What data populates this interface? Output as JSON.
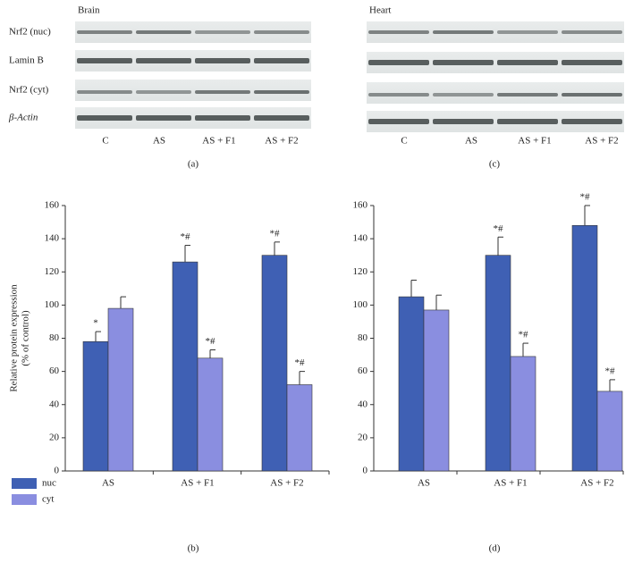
{
  "blots": [
    {
      "title": "Brain",
      "rows": [
        "Nrf2 (nuc)",
        "Lamin B",
        "Nrf2 (cyt)",
        "β-Actin"
      ],
      "columns": [
        "C",
        "AS",
        "AS + F1",
        "AS + F2"
      ],
      "label": "(a)"
    },
    {
      "title": "Heart",
      "columns": [
        "C",
        "AS",
        "AS + F1",
        "AS + F2"
      ],
      "label": "(c)"
    }
  ],
  "chart_data": [
    {
      "type": "bar",
      "label": "(b)",
      "y_label": [
        "Relative protein expression",
        "(% of control)"
      ],
      "categories": [
        "AS",
        "AS + F1",
        "AS + F2"
      ],
      "series": [
        {
          "name": "nuc",
          "color": "#3f60b4",
          "values": [
            78,
            126,
            130
          ],
          "errors": [
            6,
            10,
            8
          ],
          "annotations": [
            "*",
            "*#",
            "*#"
          ]
        },
        {
          "name": "cyt",
          "color": "#8a8ee0",
          "values": [
            98,
            68,
            52
          ],
          "errors": [
            7,
            5,
            8
          ],
          "annotations": [
            null,
            "*#",
            "*#"
          ]
        }
      ],
      "ylim": [
        0,
        160
      ],
      "yticks": [
        0,
        20,
        40,
        60,
        80,
        100,
        120,
        140,
        160
      ],
      "legend": "bottom left"
    },
    {
      "type": "bar",
      "label": "(d)",
      "categories": [
        "AS",
        "AS + F1",
        "AS + F2"
      ],
      "series": [
        {
          "color": "#3f60b4",
          "values": [
            105,
            130,
            148
          ],
          "errors": [
            10,
            11,
            12
          ],
          "annotations": [
            null,
            "*#",
            "*#"
          ]
        },
        {
          "color": "#8a8ee0",
          "values": [
            97,
            69,
            48
          ],
          "errors": [
            9,
            8,
            7
          ],
          "annotations": [
            null,
            "*#",
            "*#"
          ]
        }
      ],
      "ylim": [
        0,
        160
      ],
      "yticks": [
        0,
        20,
        40,
        60,
        80,
        100,
        120,
        140,
        160
      ]
    }
  ]
}
